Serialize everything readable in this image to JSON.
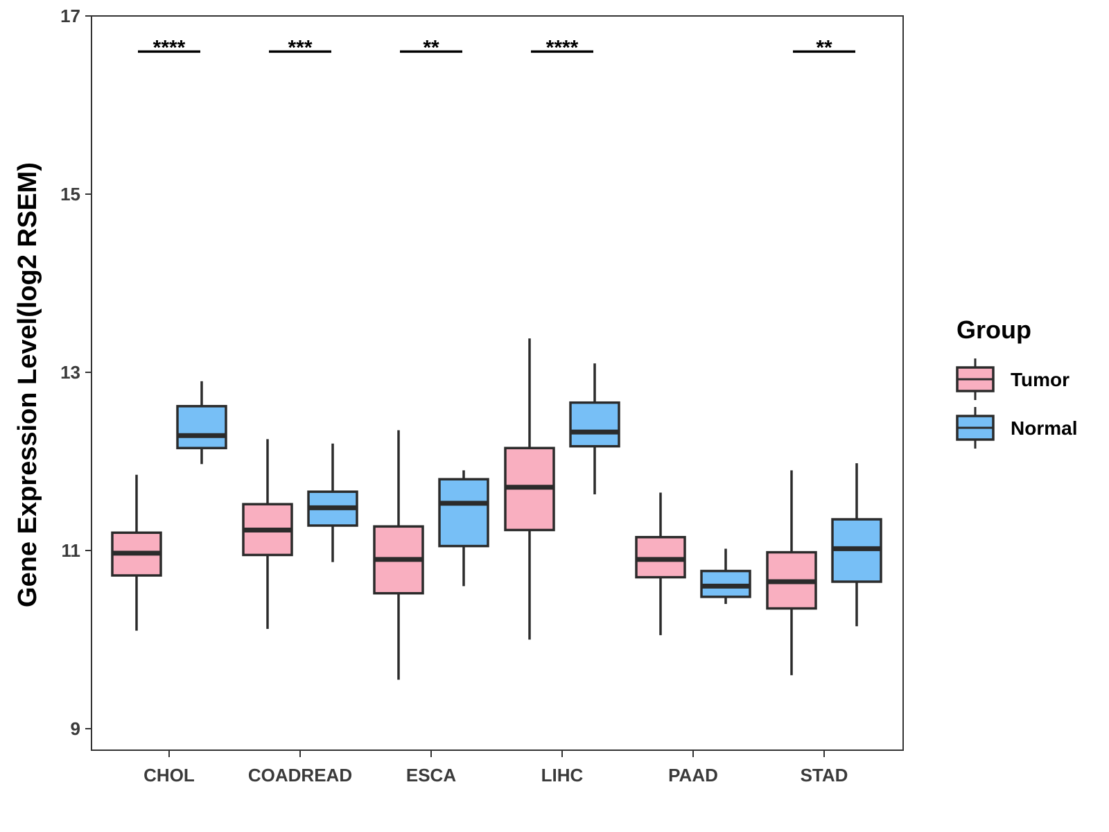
{
  "chart_data": {
    "type": "boxplot",
    "title": "",
    "xlabel": "",
    "ylabel": "Gene Expression Level(log2 RSEM)",
    "ylim": [
      8.8,
      17
    ],
    "yticks": [
      9,
      11,
      13,
      15,
      17
    ],
    "categories": [
      "CHOL",
      "COADREAD",
      "ESCA",
      "LIHC",
      "PAAD",
      "STAD"
    ],
    "legend": {
      "title": "Group",
      "position": "right"
    },
    "series": [
      {
        "name": "Tumor",
        "color": "#F9AFC0",
        "boxes": [
          {
            "min": 10.1,
            "q1": 10.72,
            "median": 10.97,
            "q3": 11.2,
            "max": 11.85
          },
          {
            "min": 10.12,
            "q1": 10.95,
            "median": 11.23,
            "q3": 11.52,
            "max": 12.25
          },
          {
            "min": 9.55,
            "q1": 10.52,
            "median": 10.9,
            "q3": 11.27,
            "max": 12.35
          },
          {
            "min": 10.0,
            "q1": 11.23,
            "median": 11.71,
            "q3": 12.15,
            "max": 13.38
          },
          {
            "min": 10.05,
            "q1": 10.7,
            "median": 10.9,
            "q3": 11.15,
            "max": 11.65
          },
          {
            "min": 9.6,
            "q1": 10.35,
            "median": 10.65,
            "q3": 10.98,
            "max": 11.9
          }
        ]
      },
      {
        "name": "Normal",
        "color": "#77BFF6",
        "boxes": [
          {
            "min": 11.97,
            "q1": 12.15,
            "median": 12.29,
            "q3": 12.62,
            "max": 12.9
          },
          {
            "min": 10.87,
            "q1": 11.28,
            "median": 11.48,
            "q3": 11.66,
            "max": 12.2
          },
          {
            "min": 10.6,
            "q1": 11.05,
            "median": 11.53,
            "q3": 11.8,
            "max": 11.9
          },
          {
            "min": 11.63,
            "q1": 12.17,
            "median": 12.33,
            "q3": 12.66,
            "max": 13.1
          },
          {
            "min": 10.4,
            "q1": 10.48,
            "median": 10.6,
            "q3": 10.77,
            "max": 11.02
          },
          {
            "min": 10.15,
            "q1": 10.65,
            "median": 11.02,
            "q3": 11.35,
            "max": 11.98
          }
        ]
      }
    ],
    "significance": [
      {
        "category": "CHOL",
        "label": "****",
        "y": 16.6
      },
      {
        "category": "COADREAD",
        "label": "***",
        "y": 16.6
      },
      {
        "category": "ESCA",
        "label": "**",
        "y": 16.6
      },
      {
        "category": "LIHC",
        "label": "****",
        "y": 16.6
      },
      {
        "category": "STAD",
        "label": "**",
        "y": 16.6
      }
    ]
  }
}
